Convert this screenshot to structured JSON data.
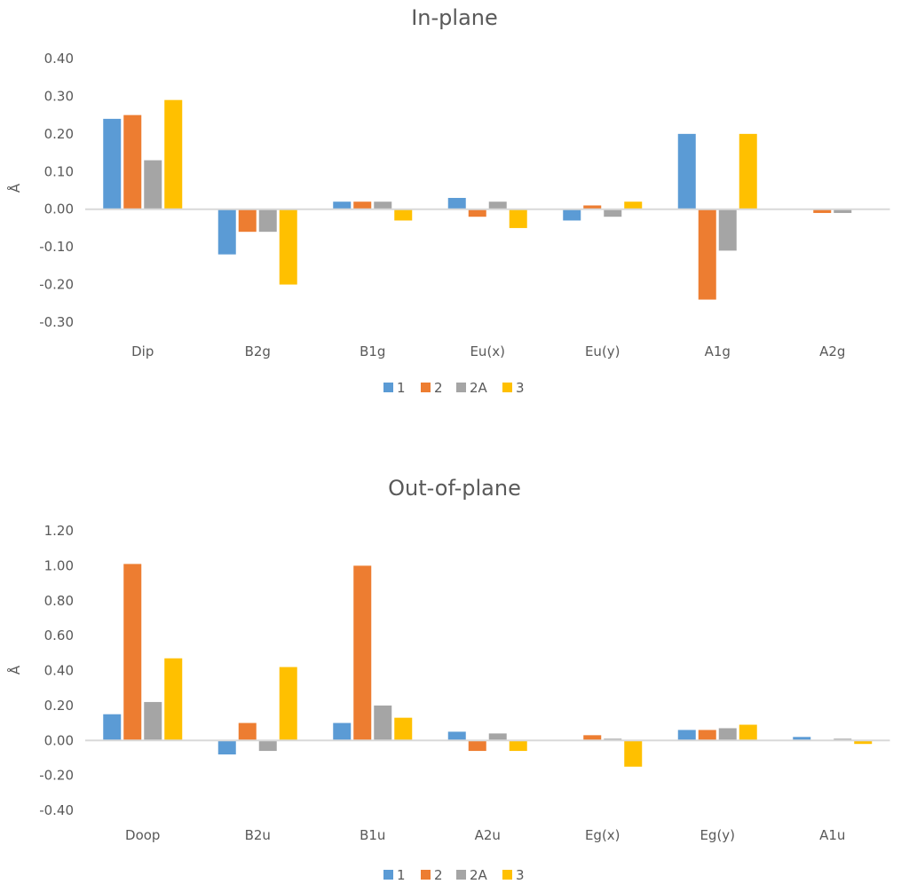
{
  "chart_data": [
    {
      "type": "bar",
      "title": "In-plane",
      "ylabel": "Å",
      "xlabel": "",
      "ylim": [
        -0.3,
        0.4
      ],
      "ytick_step": 0.1,
      "grid": false,
      "legend": "bottom",
      "categories": [
        "Dip",
        "B2g",
        "B1g",
        "Eu(x)",
        "Eu(y)",
        "A1g",
        "A2g"
      ],
      "series": [
        {
          "name": "1",
          "color": "#5B9BD5",
          "values": [
            0.24,
            -0.12,
            0.02,
            0.03,
            -0.03,
            0.2,
            0.0
          ]
        },
        {
          "name": "2",
          "color": "#ED7D31",
          "values": [
            0.25,
            -0.06,
            0.02,
            -0.02,
            0.01,
            -0.24,
            -0.01
          ]
        },
        {
          "name": "2A",
          "color": "#A5A5A5",
          "values": [
            0.13,
            -0.06,
            0.02,
            0.02,
            -0.02,
            -0.11,
            -0.01
          ]
        },
        {
          "name": "3",
          "color": "#FFC000",
          "values": [
            0.29,
            -0.2,
            -0.03,
            -0.05,
            0.02,
            0.2,
            0.0
          ]
        }
      ]
    },
    {
      "type": "bar",
      "title": "Out-of-plane",
      "ylabel": "Å",
      "xlabel": "",
      "ylim": [
        -0.4,
        1.2
      ],
      "ytick_step": 0.2,
      "grid": false,
      "legend": "bottom",
      "categories": [
        "Doop",
        "B2u",
        "B1u",
        "A2u",
        "Eg(x)",
        "Eg(y)",
        "A1u"
      ],
      "series": [
        {
          "name": "1",
          "color": "#5B9BD5",
          "values": [
            0.15,
            -0.08,
            0.1,
            0.05,
            0.0,
            0.06,
            0.02
          ]
        },
        {
          "name": "2",
          "color": "#ED7D31",
          "values": [
            1.01,
            0.1,
            1.0,
            -0.06,
            0.03,
            0.06,
            0.0
          ]
        },
        {
          "name": "2A",
          "color": "#A5A5A5",
          "values": [
            0.22,
            -0.06,
            0.2,
            0.04,
            0.01,
            0.07,
            0.01
          ]
        },
        {
          "name": "3",
          "color": "#FFC000",
          "values": [
            0.47,
            0.42,
            0.13,
            -0.06,
            -0.15,
            0.09,
            -0.02
          ]
        }
      ]
    }
  ]
}
